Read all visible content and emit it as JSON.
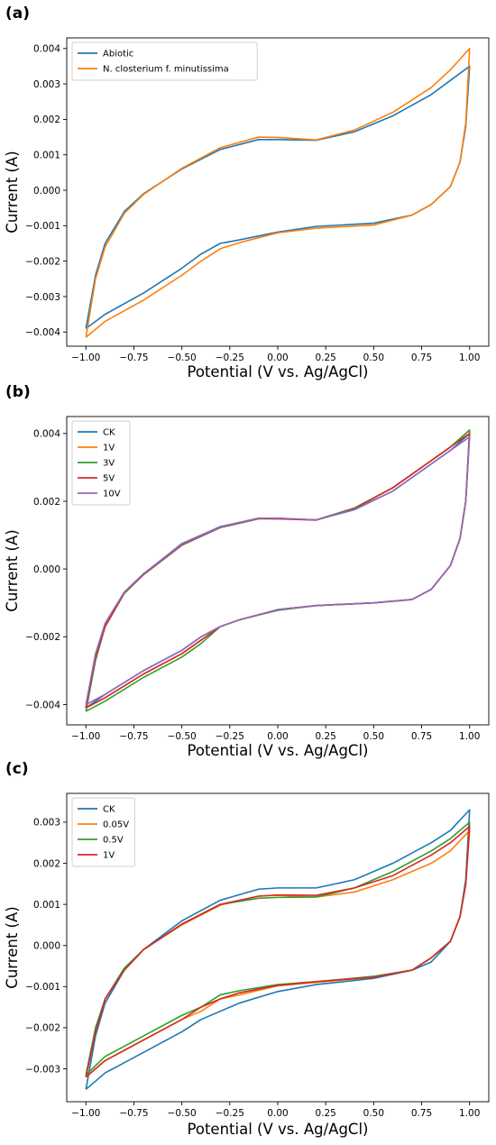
{
  "chart_data": [
    {
      "panel_label": "(a)",
      "type": "line",
      "xlabel": "Potential (V vs. Ag/AgCl)",
      "ylabel": "Current (A)",
      "xlim": [
        -1.1,
        1.1
      ],
      "ylim": [
        -0.0044,
        0.0043
      ],
      "xticks": [
        -1.0,
        -0.75,
        -0.5,
        -0.25,
        0.0,
        0.25,
        0.5,
        0.75,
        1.0
      ],
      "xtick_labels": [
        "−1.00",
        "−0.75",
        "−0.50",
        "−0.25",
        "0.00",
        "0.25",
        "0.50",
        "0.75",
        "1.00"
      ],
      "yticks": [
        -0.004,
        -0.003,
        -0.002,
        -0.001,
        0.0,
        0.001,
        0.002,
        0.003,
        0.004
      ],
      "ytick_labels": [
        "−0.004",
        "−0.003",
        "−0.002",
        "−0.001",
        "0.000",
        "0.001",
        "0.002",
        "0.003",
        "0.004"
      ],
      "grid": false,
      "legend_position": "upper-left",
      "series": [
        {
          "name": "Abiotic",
          "color": "#1f77b4",
          "x": [
            -1.0,
            -0.95,
            -0.9,
            -0.8,
            -0.7,
            -0.5,
            -0.3,
            -0.1,
            0.0,
            0.2,
            0.4,
            0.6,
            0.8,
            0.9,
            1.0,
            1.0,
            0.98,
            0.95,
            0.9,
            0.8,
            0.7,
            0.5,
            0.2,
            0.0,
            -0.2,
            -0.3,
            -0.4,
            -0.5,
            -0.7,
            -0.9,
            -1.0,
            -1.0
          ],
          "y": [
            -0.0039,
            -0.0024,
            -0.0015,
            -0.0006,
            -0.0001,
            0.0006,
            0.00115,
            0.00143,
            0.00143,
            0.00141,
            0.00165,
            0.0021,
            0.0027,
            0.0031,
            0.0035,
            0.0035,
            0.0018,
            0.0008,
            0.0001,
            -0.0004,
            -0.0007,
            -0.00093,
            -0.00102,
            -0.00118,
            -0.0014,
            -0.0015,
            -0.0018,
            -0.0022,
            -0.0029,
            -0.0035,
            -0.0039,
            -0.0039
          ]
        },
        {
          "name": "N. closterium f. minutissima",
          "color": "#ff7f0e",
          "x": [
            -1.0,
            -0.95,
            -0.9,
            -0.8,
            -0.7,
            -0.5,
            -0.3,
            -0.1,
            0.0,
            0.2,
            0.4,
            0.6,
            0.8,
            0.9,
            1.0,
            1.0,
            0.98,
            0.95,
            0.9,
            0.8,
            0.7,
            0.5,
            0.2,
            0.0,
            -0.2,
            -0.3,
            -0.4,
            -0.5,
            -0.7,
            -0.9,
            -1.0,
            -1.0
          ],
          "y": [
            -0.00415,
            -0.0025,
            -0.0016,
            -0.00065,
            -0.00012,
            0.00062,
            0.0012,
            0.0015,
            0.00149,
            0.00142,
            0.0017,
            0.0022,
            0.0029,
            0.0034,
            0.004,
            0.004,
            0.0019,
            0.0008,
            0.0001,
            -0.0004,
            -0.0007,
            -0.00098,
            -0.00107,
            -0.0012,
            -0.00148,
            -0.00165,
            -0.002,
            -0.0024,
            -0.0031,
            -0.0037,
            -0.00415,
            -0.00415
          ]
        }
      ]
    },
    {
      "panel_label": "(b)",
      "type": "line",
      "xlabel": "Potential (V vs. Ag/AgCl)",
      "ylabel": "Current (A)",
      "xlim": [
        -1.1,
        1.1
      ],
      "ylim": [
        -0.0046,
        0.0045
      ],
      "xticks": [
        -1.0,
        -0.75,
        -0.5,
        -0.25,
        0.0,
        0.25,
        0.5,
        0.75,
        1.0
      ],
      "xtick_labels": [
        "−1.00",
        "−0.75",
        "−0.50",
        "−0.25",
        "0.00",
        "0.25",
        "0.50",
        "0.75",
        "1.00"
      ],
      "yticks": [
        -0.004,
        -0.002,
        0.0,
        0.002,
        0.004
      ],
      "ytick_labels": [
        "−0.004",
        "−0.002",
        "0.000",
        "0.002",
        "0.004"
      ],
      "grid": false,
      "legend_position": "upper-left",
      "series": [
        {
          "name": "CK",
          "color": "#1f77b4",
          "x": [
            -1.0,
            -0.95,
            -0.9,
            -0.8,
            -0.7,
            -0.5,
            -0.3,
            -0.1,
            0.0,
            0.2,
            0.4,
            0.6,
            0.8,
            0.9,
            1.0,
            1.0,
            0.98,
            0.95,
            0.9,
            0.8,
            0.7,
            0.5,
            0.2,
            0.0,
            -0.2,
            -0.3,
            -0.4,
            -0.5,
            -0.7,
            -0.9,
            -1.0,
            -1.0
          ],
          "y": [
            -0.0041,
            -0.0026,
            -0.0017,
            -0.0007,
            -0.00015,
            0.00075,
            0.00125,
            0.0015,
            0.0015,
            0.00145,
            0.00175,
            0.0023,
            0.0031,
            0.0035,
            0.004,
            0.004,
            0.002,
            0.0009,
            0.0001,
            -0.0006,
            -0.0009,
            -0.001,
            -0.00108,
            -0.0012,
            -0.0015,
            -0.0017,
            -0.002,
            -0.0024,
            -0.003,
            -0.0037,
            -0.0041,
            -0.0041
          ]
        },
        {
          "name": "1V",
          "color": "#ff7f0e",
          "x": [
            -1.0,
            -0.95,
            -0.9,
            -0.8,
            -0.7,
            -0.5,
            -0.3,
            -0.1,
            0.0,
            0.2,
            0.4,
            0.6,
            0.8,
            0.9,
            1.0,
            1.0,
            0.98,
            0.95,
            0.9,
            0.8,
            0.7,
            0.5,
            0.2,
            0.0,
            -0.2,
            -0.3,
            -0.4,
            -0.5,
            -0.7,
            -0.9,
            -1.0,
            -1.0
          ],
          "y": [
            -0.0041,
            -0.0026,
            -0.0017,
            -0.0007,
            -0.00015,
            0.00073,
            0.00124,
            0.0015,
            0.00149,
            0.00145,
            0.0018,
            0.0024,
            0.0032,
            0.0036,
            0.0041,
            0.0041,
            0.002,
            0.0009,
            0.0001,
            -0.0006,
            -0.0009,
            -0.001,
            -0.00108,
            -0.0012,
            -0.0015,
            -0.0017,
            -0.0021,
            -0.0025,
            -0.0031,
            -0.0038,
            -0.0041,
            -0.0041
          ]
        },
        {
          "name": "3V",
          "color": "#2ca02c",
          "x": [
            -1.0,
            -0.95,
            -0.9,
            -0.8,
            -0.7,
            -0.5,
            -0.3,
            -0.1,
            0.0,
            0.2,
            0.4,
            0.6,
            0.8,
            0.9,
            1.0,
            1.0,
            0.98,
            0.95,
            0.9,
            0.8,
            0.7,
            0.5,
            0.2,
            0.0,
            -0.2,
            -0.3,
            -0.4,
            -0.5,
            -0.7,
            -0.9,
            -1.0,
            -1.0
          ],
          "y": [
            -0.0042,
            -0.0027,
            -0.0017,
            -0.00072,
            -0.00017,
            0.0007,
            0.00122,
            0.00148,
            0.00148,
            0.00145,
            0.0018,
            0.0024,
            0.0032,
            0.0036,
            0.0041,
            0.0041,
            0.002,
            0.0009,
            0.0001,
            -0.0006,
            -0.0009,
            -0.001,
            -0.00108,
            -0.00122,
            -0.0015,
            -0.0017,
            -0.0022,
            -0.0026,
            -0.0032,
            -0.0039,
            -0.0042,
            -0.0042
          ]
        },
        {
          "name": "5V",
          "color": "#d62728",
          "x": [
            -1.0,
            -0.95,
            -0.9,
            -0.8,
            -0.7,
            -0.5,
            -0.3,
            -0.1,
            0.0,
            0.2,
            0.4,
            0.6,
            0.8,
            0.9,
            1.0,
            1.0,
            0.98,
            0.95,
            0.9,
            0.8,
            0.7,
            0.5,
            0.2,
            0.0,
            -0.2,
            -0.3,
            -0.4,
            -0.5,
            -0.7,
            -0.9,
            -1.0,
            -1.0
          ],
          "y": [
            -0.0041,
            -0.0026,
            -0.0017,
            -0.0007,
            -0.00016,
            0.00071,
            0.00123,
            0.00149,
            0.00148,
            0.00144,
            0.00178,
            0.0024,
            0.0032,
            0.0036,
            0.004,
            0.004,
            0.002,
            0.0009,
            0.0001,
            -0.0006,
            -0.0009,
            -0.001,
            -0.00108,
            -0.0012,
            -0.0015,
            -0.0017,
            -0.0021,
            -0.0025,
            -0.0031,
            -0.0038,
            -0.0041,
            -0.0041
          ]
        },
        {
          "name": "10V",
          "color": "#9467bd",
          "x": [
            -1.0,
            -0.95,
            -0.9,
            -0.8,
            -0.7,
            -0.5,
            -0.3,
            -0.1,
            0.0,
            0.2,
            0.4,
            0.6,
            0.8,
            0.9,
            1.0,
            1.0,
            0.98,
            0.95,
            0.9,
            0.8,
            0.7,
            0.5,
            0.2,
            0.0,
            -0.2,
            -0.3,
            -0.4,
            -0.5,
            -0.7,
            -0.9,
            -1.0,
            -1.0
          ],
          "y": [
            -0.004,
            -0.0025,
            -0.0016,
            -0.00068,
            -0.00014,
            0.00073,
            0.00124,
            0.0015,
            0.0015,
            0.00145,
            0.00176,
            0.0023,
            0.0031,
            0.0035,
            0.0039,
            0.0039,
            0.002,
            0.0009,
            0.0001,
            -0.0006,
            -0.0009,
            -0.001,
            -0.00108,
            -0.0012,
            -0.0015,
            -0.0017,
            -0.002,
            -0.0024,
            -0.003,
            -0.0037,
            -0.004,
            -0.004
          ]
        }
      ]
    },
    {
      "panel_label": "(c)",
      "type": "line",
      "xlabel": "Potential (V vs. Ag/AgCl)",
      "ylabel": "Current (A)",
      "xlim": [
        -1.1,
        1.1
      ],
      "ylim": [
        -0.0038,
        0.0037
      ],
      "xticks": [
        -1.0,
        -0.75,
        -0.5,
        -0.25,
        0.0,
        0.25,
        0.5,
        0.75,
        1.0
      ],
      "xtick_labels": [
        "−1.00",
        "−0.75",
        "−0.50",
        "−0.25",
        "0.00",
        "0.25",
        "0.50",
        "0.75",
        "1.00"
      ],
      "yticks": [
        -0.003,
        -0.002,
        -0.001,
        0.0,
        0.001,
        0.002,
        0.003
      ],
      "ytick_labels": [
        "−0.003",
        "−0.002",
        "−0.001",
        "0.000",
        "0.001",
        "0.002",
        "0.003"
      ],
      "grid": false,
      "legend_position": "upper-left",
      "series": [
        {
          "name": "CK",
          "color": "#1f77b4",
          "x": [
            -1.0,
            -0.95,
            -0.9,
            -0.8,
            -0.7,
            -0.5,
            -0.3,
            -0.1,
            0.0,
            0.2,
            0.4,
            0.6,
            0.8,
            0.9,
            1.0,
            1.0,
            0.98,
            0.95,
            0.9,
            0.8,
            0.7,
            0.5,
            0.2,
            0.0,
            -0.2,
            -0.3,
            -0.4,
            -0.5,
            -0.7,
            -0.9,
            -1.0,
            -1.0
          ],
          "y": [
            -0.0035,
            -0.0022,
            -0.0014,
            -0.0006,
            -0.0001,
            0.0006,
            0.0011,
            0.00137,
            0.0014,
            0.0014,
            0.0016,
            0.002,
            0.0025,
            0.0028,
            0.0033,
            0.0033,
            0.0016,
            0.0007,
            0.0001,
            -0.0004,
            -0.0006,
            -0.0008,
            -0.00095,
            -0.00112,
            -0.0014,
            -0.0016,
            -0.0018,
            -0.0021,
            -0.0026,
            -0.0031,
            -0.0035,
            -0.0035
          ]
        },
        {
          "name": "0.05V",
          "color": "#ff7f0e",
          "x": [
            -1.0,
            -0.95,
            -0.9,
            -0.8,
            -0.7,
            -0.5,
            -0.3,
            -0.1,
            0.0,
            0.2,
            0.4,
            0.6,
            0.8,
            0.9,
            1.0,
            1.0,
            0.98,
            0.95,
            0.9,
            0.8,
            0.7,
            0.5,
            0.2,
            0.0,
            -0.2,
            -0.3,
            -0.4,
            -0.5,
            -0.7,
            -0.9,
            -1.0,
            -1.0
          ],
          "y": [
            -0.0032,
            -0.0021,
            -0.0013,
            -0.0006,
            -0.0001,
            0.0005,
            0.00098,
            0.0012,
            0.00122,
            0.00118,
            0.0013,
            0.0016,
            0.002,
            0.0023,
            0.0028,
            0.0028,
            0.0015,
            0.0007,
            0.0001,
            -0.0003,
            -0.0006,
            -0.00077,
            -0.0009,
            -0.00098,
            -0.0012,
            -0.0013,
            -0.0016,
            -0.0018,
            -0.0023,
            -0.0028,
            -0.0032,
            -0.0032
          ]
        },
        {
          "name": "0.5V",
          "color": "#2ca02c",
          "x": [
            -1.0,
            -0.95,
            -0.9,
            -0.8,
            -0.7,
            -0.5,
            -0.3,
            -0.1,
            0.0,
            0.2,
            0.4,
            0.6,
            0.8,
            0.9,
            1.0,
            1.0,
            0.98,
            0.95,
            0.9,
            0.8,
            0.7,
            0.5,
            0.2,
            0.0,
            -0.2,
            -0.3,
            -0.4,
            -0.5,
            -0.7,
            -0.9,
            -1.0,
            -1.0
          ],
          "y": [
            -0.00315,
            -0.002,
            -0.0013,
            -0.00055,
            -0.0001,
            0.00052,
            0.001,
            0.00115,
            0.00117,
            0.00118,
            0.0014,
            0.0018,
            0.0023,
            0.0026,
            0.003,
            0.003,
            0.0015,
            0.0007,
            0.0001,
            -0.0003,
            -0.0006,
            -0.00075,
            -0.00088,
            -0.00095,
            -0.0011,
            -0.0012,
            -0.0015,
            -0.0017,
            -0.0022,
            -0.0027,
            -0.00315,
            -0.00315
          ]
        },
        {
          "name": "1V",
          "color": "#d62728",
          "x": [
            -1.0,
            -0.95,
            -0.9,
            -0.8,
            -0.7,
            -0.5,
            -0.3,
            -0.1,
            0.0,
            0.2,
            0.4,
            0.6,
            0.8,
            0.9,
            1.0,
            1.0,
            0.98,
            0.95,
            0.9,
            0.8,
            0.7,
            0.5,
            0.2,
            0.0,
            -0.2,
            -0.3,
            -0.4,
            -0.5,
            -0.7,
            -0.9,
            -1.0,
            -1.0
          ],
          "y": [
            -0.0032,
            -0.0021,
            -0.0013,
            -0.0006,
            -0.0001,
            0.00052,
            0.001,
            0.0012,
            0.00123,
            0.00122,
            0.0014,
            0.0017,
            0.0022,
            0.0025,
            0.0029,
            0.0029,
            0.0015,
            0.0007,
            0.0001,
            -0.0003,
            -0.0006,
            -0.00077,
            -0.00088,
            -0.00097,
            -0.00115,
            -0.0013,
            -0.0015,
            -0.0018,
            -0.0023,
            -0.0028,
            -0.0032,
            -0.0032
          ]
        }
      ]
    }
  ]
}
